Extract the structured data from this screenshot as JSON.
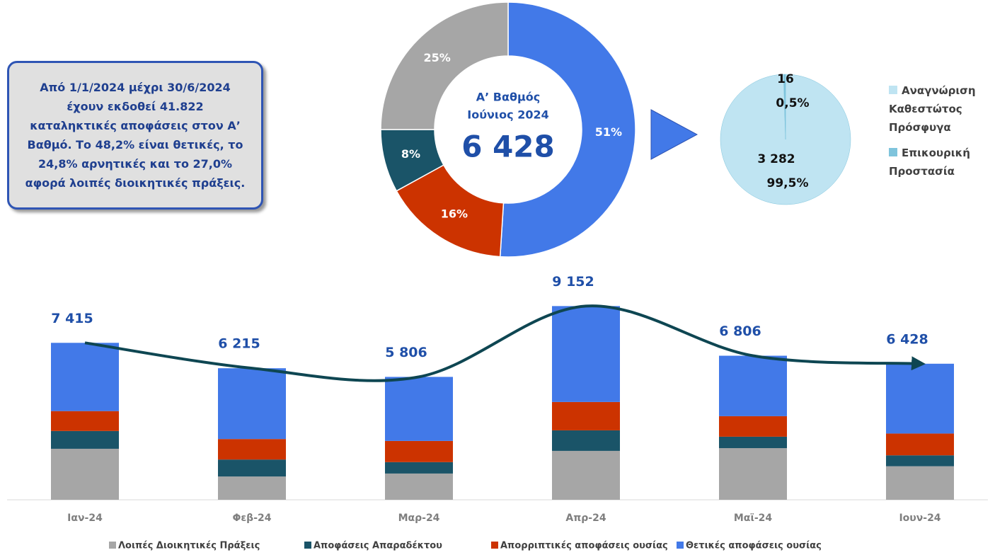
{
  "note": "Από 1/1/2024 μέχρι 30/6/2024 έχουν εκδοθεί  41.822 καταληκτικές αποφάσεις στον Α’ Βαθμό. Το 48,2% είναι θετικές, το 24,8% αρνητικές και το 27,0% αφορά λοιπές διοικητικές πράξεις.",
  "chart_data": [
    {
      "type": "donut",
      "center_title": [
        "Α’ Βαθμός",
        "Ιούνιος 2024"
      ],
      "total": 6428,
      "total_label": "6 428",
      "categories": [
        "Θετικές αποφάσεις ουσίας",
        "Απορριπτικές αποφάσεις ουσίας",
        "Αποφάσεις Απαραδέκτου",
        "Λοιπές Διοικητικές Πράξεις"
      ],
      "values": [
        51,
        16,
        8,
        25
      ],
      "value_labels": [
        "51%",
        "16%",
        "8%",
        "25%"
      ],
      "colors": [
        "#4279e8",
        "#cc3300",
        "#1a5468",
        "#a6a6a6"
      ]
    },
    {
      "type": "pie",
      "categories": [
        "Αναγνώριση Καθεστώτος Πρόσφυγα",
        "Επικουρική Προστασία"
      ],
      "values": [
        3282,
        16
      ],
      "value_labels": [
        "3 282",
        "16"
      ],
      "percent_labels": [
        "99,5%",
        "0,5%"
      ],
      "colors": [
        "#bfe4f2",
        "#7fc4dc"
      ]
    },
    {
      "type": "stacked_bar",
      "categories": [
        "Ιαν-24",
        "Φεβ-24",
        "Μαρ-24",
        "Απρ-24",
        "Μαϊ-24",
        "Ιουν-24"
      ],
      "series": [
        {
          "name": "Λοιπές Διοικητικές Πράξεις",
          "color": "#a6a6a6",
          "values": [
            2410,
            1100,
            1240,
            2310,
            2440,
            1585
          ]
        },
        {
          "name": "Αποφάσεις Απαραδέκτου",
          "color": "#1a5468",
          "values": [
            840,
            800,
            540,
            970,
            540,
            515
          ]
        },
        {
          "name": "Απορριπτικές αποφάσεις ουσίας",
          "color": "#cc3300",
          "values": [
            940,
            970,
            1000,
            1340,
            970,
            1030
          ]
        },
        {
          "name": "Θετικές αποφάσεις ουσίας",
          "color": "#4279e8",
          "values": [
            3225,
            3345,
            3026,
            4532,
            2856,
            3298
          ]
        }
      ],
      "totals": {
        "color": "#0e4652",
        "values": [
          7415,
          6215,
          5806,
          9152,
          6806,
          6428
        ],
        "value_labels": [
          "7 415",
          "6 215",
          "5 806",
          "9 152",
          "6 806",
          "6 428"
        ]
      },
      "ylim": [
        0,
        10000
      ]
    }
  ]
}
